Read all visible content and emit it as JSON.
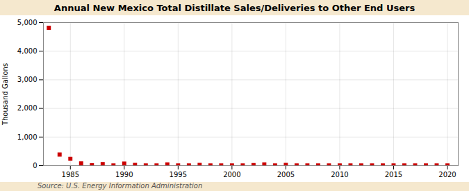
{
  "chart_data": {
    "type": "scatter",
    "title": "Annual New Mexico Total Distillate Sales/Deliveries to Other End Users",
    "ylabel": "Thousand Gallons",
    "source": "Source: U.S. Energy Information Administration",
    "x": [
      1983,
      1984,
      1985,
      1986,
      1987,
      1988,
      1989,
      1990,
      1991,
      1992,
      1993,
      1994,
      1995,
      1996,
      1997,
      1998,
      1999,
      2000,
      2001,
      2002,
      2003,
      2004,
      2005,
      2006,
      2007,
      2008,
      2009,
      2010,
      2011,
      2012,
      2013,
      2014,
      2015,
      2016,
      2017,
      2018,
      2019,
      2020
    ],
    "values": [
      4820,
      390,
      240,
      80,
      10,
      55,
      5,
      75,
      25,
      8,
      5,
      45,
      5,
      8,
      28,
      8,
      5,
      8,
      8,
      18,
      45,
      8,
      28,
      8,
      8,
      8,
      8,
      8,
      8,
      8,
      8,
      8,
      8,
      8,
      8,
      8,
      8,
      8
    ],
    "color": "#cc0000",
    "marker": "square",
    "xlim": [
      1982.5,
      2021
    ],
    "xticks": [
      1985,
      1990,
      1995,
      2000,
      2005,
      2010,
      2015,
      2020
    ],
    "ylim": [
      0,
      5000
    ],
    "yticks": [
      0,
      {
        "value": 1000,
        "label": "1,000"
      },
      {
        "value": 2000,
        "label": "2,000"
      },
      {
        "value": 3000,
        "label": "3,000"
      },
      {
        "value": 4000,
        "label": "4,000"
      },
      {
        "value": 5000,
        "label": "5,000"
      }
    ],
    "grid": true
  }
}
